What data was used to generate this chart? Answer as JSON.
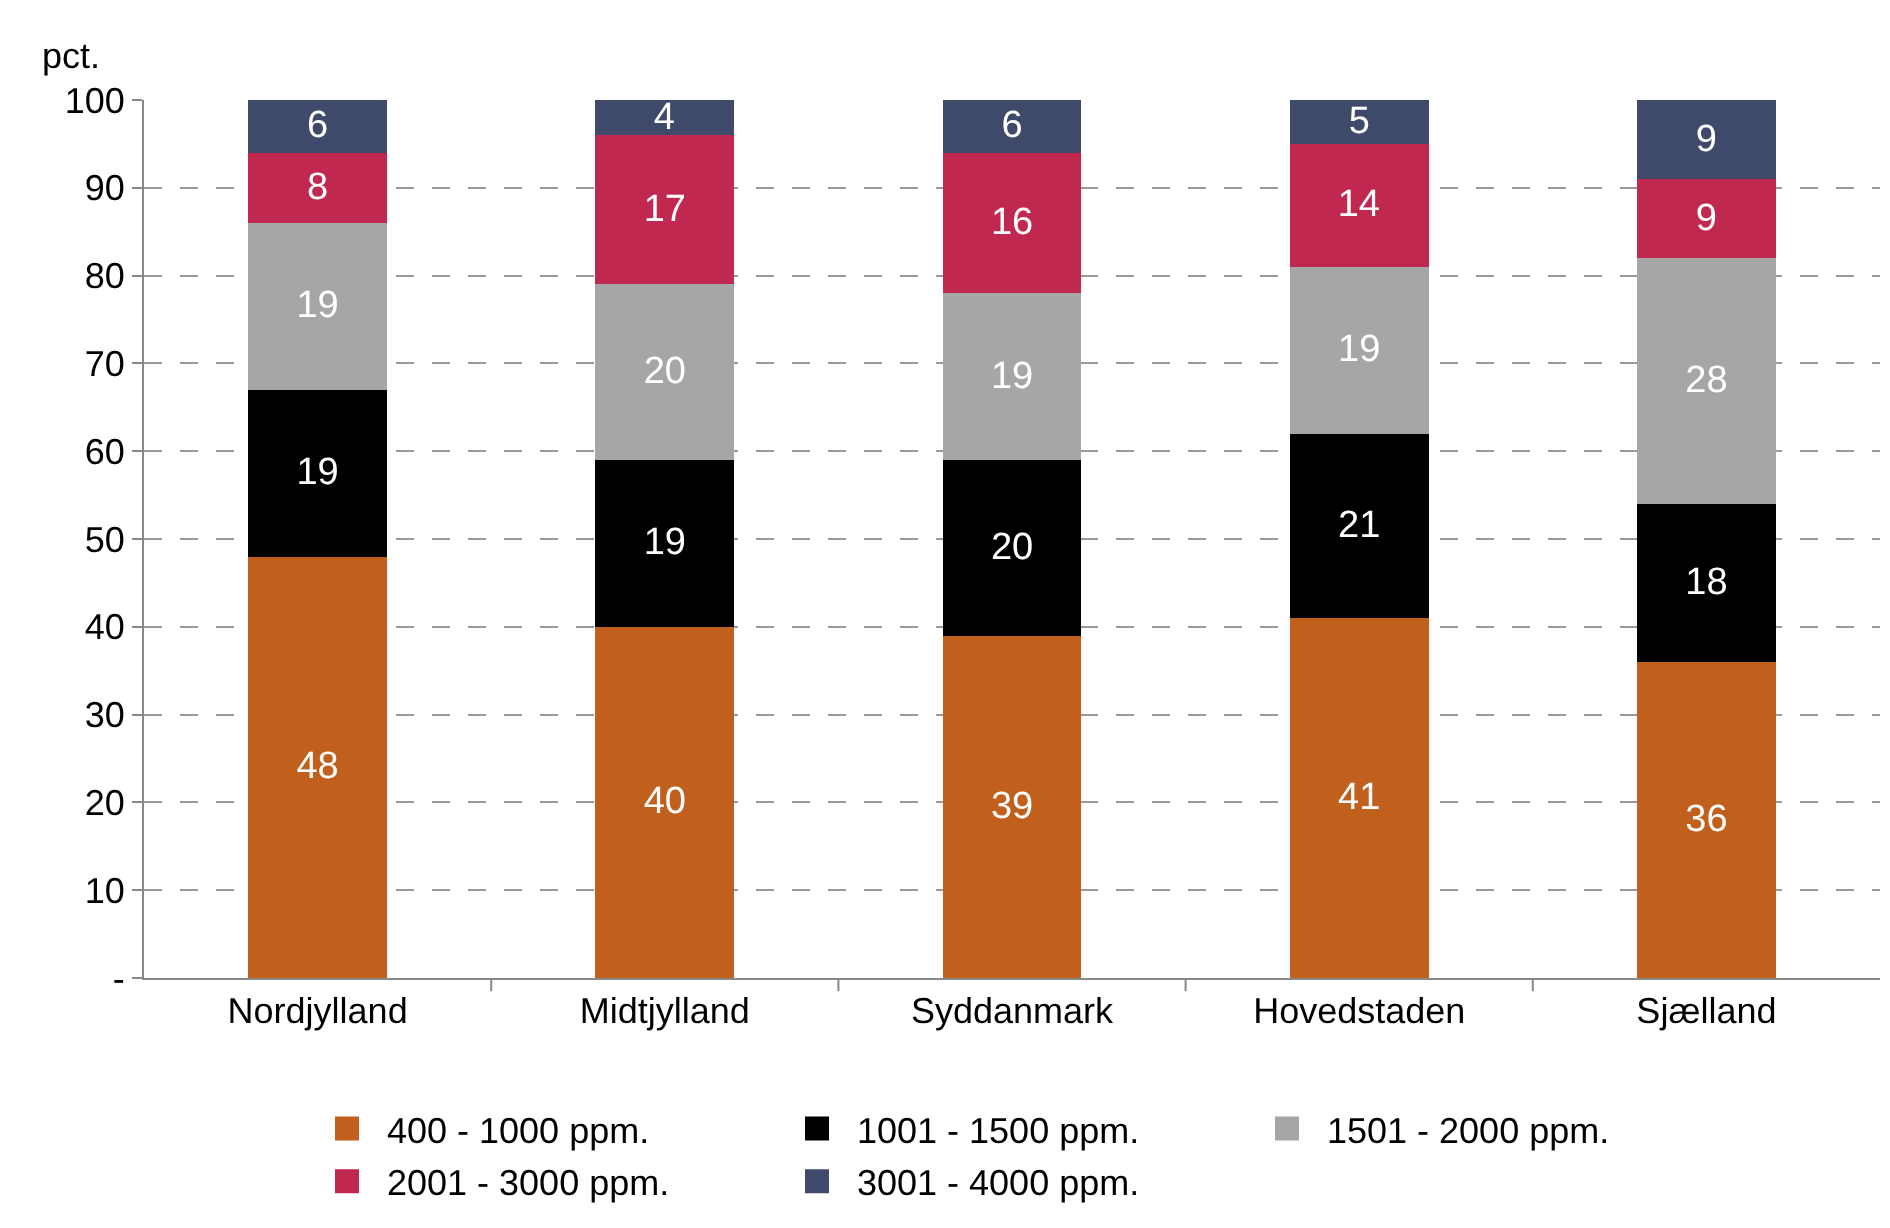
{
  "chart_data": {
    "type": "bar",
    "stacked": true,
    "ylabel": "pct.",
    "categories": [
      "Nordjylland",
      "Midtjylland",
      "Syddanmark",
      "Hovedstaden",
      "Sjælland"
    ],
    "series": [
      {
        "name": "400 - 1000 ppm.",
        "color": "#c0601c",
        "values": [
          48,
          40,
          39,
          41,
          36
        ]
      },
      {
        "name": "1001 - 1500 ppm.",
        "color": "#000000",
        "values": [
          19,
          19,
          20,
          21,
          18
        ]
      },
      {
        "name": "1501 - 2000 ppm.",
        "color": "#a6a6a6",
        "values": [
          19,
          20,
          19,
          19,
          28
        ]
      },
      {
        "name": "2001 - 3000 ppm.",
        "color": "#c0284f",
        "values": [
          8,
          17,
          16,
          14,
          9
        ]
      },
      {
        "name": "3001 - 4000 ppm.",
        "color": "#3f4a6b",
        "values": [
          6,
          4,
          6,
          5,
          9
        ]
      }
    ],
    "ylim": [
      0,
      100
    ],
    "yticks": [
      {
        "value": 0,
        "label": "-"
      },
      10,
      20,
      30,
      40,
      50,
      60,
      70,
      80,
      90,
      100
    ],
    "grid": "y",
    "data_labels": true,
    "legend": "bottom"
  }
}
